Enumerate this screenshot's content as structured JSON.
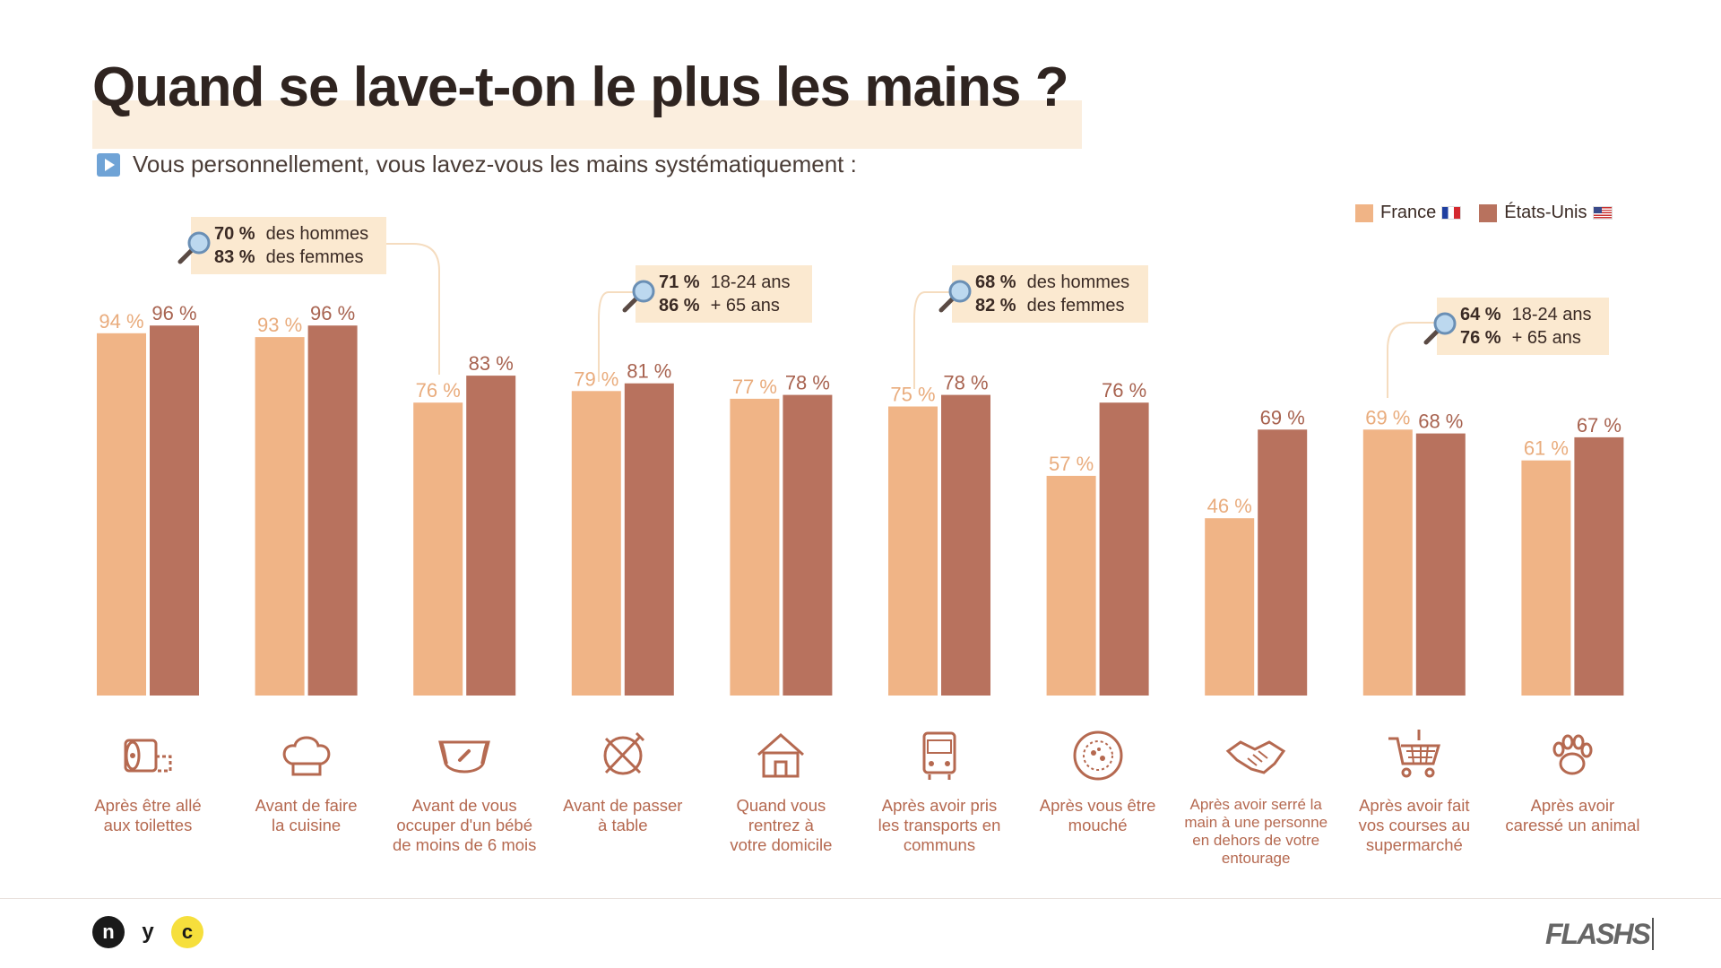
{
  "title": "Quand se lave-t-on le plus les mains ?",
  "subtitle": "Vous personnellement, vous lavez-vous les mains systématiquement :",
  "colors": {
    "france": "#f0b486",
    "usa": "#b8725e",
    "label_france": "#e9ac7d",
    "label_usa": "#a86350",
    "callout_bg": "#fbe9d0"
  },
  "legend": [
    {
      "label": "France",
      "icon": "flag-france-icon"
    },
    {
      "label": "États-Unis",
      "icon": "flag-usa-icon"
    }
  ],
  "chart_data": {
    "type": "bar",
    "ylim": [
      0,
      100
    ],
    "grid": false,
    "legend_position": "top-right",
    "categories": [
      "Après être allé aux toilettes",
      "Avant de faire la cuisine",
      "Avant de vous occuper d'un bébé de moins de 6 mois",
      "Avant de passer à table",
      "Quand vous rentrez à votre domicile",
      "Après avoir pris les transports en communs",
      "Après vous être mouché",
      "Après avoir serré la main à une personne en dehors de votre entourage",
      "Après avoir fait vos courses au supermarché",
      "Après avoir caressé un animal"
    ],
    "series": [
      {
        "name": "France",
        "values": [
          94,
          93,
          76,
          79,
          77,
          75,
          57,
          46,
          69,
          61
        ]
      },
      {
        "name": "États-Unis",
        "values": [
          96,
          96,
          83,
          81,
          78,
          78,
          76,
          69,
          68,
          67
        ]
      }
    ],
    "value_labels": {
      "france": [
        "94 %",
        "93 %",
        "76 %",
        "79 %",
        "77 %",
        "75 %",
        "57 %",
        "46 %",
        "69 %",
        "61 %"
      ],
      "usa": [
        "96 %",
        "96 %",
        "83 %",
        "81 %",
        "78 %",
        "78 %",
        "76 %",
        "69 %",
        "68 %",
        "67 %"
      ]
    }
  },
  "categories_display": [
    {
      "lines": [
        "Après être allé",
        "aux toilettes"
      ],
      "icon": "toilet-paper-icon"
    },
    {
      "lines": [
        "Avant de faire",
        "la cuisine"
      ],
      "icon": "chef-hat-icon"
    },
    {
      "lines": [
        "Avant de vous",
        "occuper d'un bébé",
        "de moins de 6 mois"
      ],
      "icon": "diaper-icon"
    },
    {
      "lines": [
        "Avant de passer",
        "à table"
      ],
      "icon": "plate-cutlery-icon"
    },
    {
      "lines": [
        "Quand vous",
        "rentrez à",
        "votre domicile"
      ],
      "icon": "house-icon"
    },
    {
      "lines": [
        "Après avoir pris",
        "les transports en",
        "communs"
      ],
      "icon": "bus-icon"
    },
    {
      "lines": [
        "Après vous être",
        "mouché"
      ],
      "icon": "germ-icon"
    },
    {
      "lines": [
        "Après avoir serré la",
        "main à une personne",
        "en dehors de votre",
        "entourage"
      ],
      "icon": "handshake-icon"
    },
    {
      "lines": [
        "Après avoir fait",
        "vos courses au",
        "supermarché"
      ],
      "icon": "shopping-cart-icon"
    },
    {
      "lines": [
        "Après avoir",
        "caressé un animal"
      ],
      "icon": "paw-icon"
    }
  ],
  "callouts": [
    {
      "category_index": 2,
      "rows": [
        {
          "value": "70 %",
          "text": "des hommes"
        },
        {
          "value": "83 %",
          "text": "des femmes"
        }
      ],
      "icon": "magnifier-icon"
    },
    {
      "category_index": 3,
      "rows": [
        {
          "value": "71 %",
          "text": "18-24 ans"
        },
        {
          "value": "86 %",
          "text": "+ 65 ans"
        }
      ],
      "icon": "magnifier-icon"
    },
    {
      "category_index": 5,
      "rows": [
        {
          "value": "68 %",
          "text": "des hommes"
        },
        {
          "value": "82 %",
          "text": "des femmes"
        }
      ],
      "icon": "magnifier-icon"
    },
    {
      "category_index": 8,
      "rows": [
        {
          "value": "64 %",
          "text": "18-24 ans"
        },
        {
          "value": "76 %",
          "text": "+ 65 ans"
        }
      ],
      "icon": "magnifier-icon"
    }
  ],
  "footer": {
    "logo_letters": [
      "n",
      "y",
      "c"
    ],
    "brand": "FLASHS"
  }
}
